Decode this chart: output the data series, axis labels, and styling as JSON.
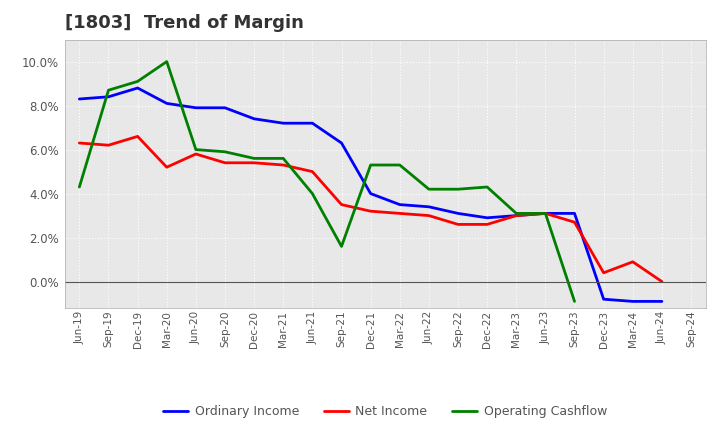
{
  "title": "[1803]  Trend of Margin",
  "x_labels": [
    "Jun-19",
    "Sep-19",
    "Dec-19",
    "Mar-20",
    "Jun-20",
    "Sep-20",
    "Dec-20",
    "Mar-21",
    "Jun-21",
    "Sep-21",
    "Dec-21",
    "Mar-22",
    "Jun-22",
    "Sep-22",
    "Dec-22",
    "Mar-23",
    "Jun-23",
    "Sep-23",
    "Dec-23",
    "Mar-24",
    "Jun-24",
    "Sep-24"
  ],
  "ordinary_income": [
    8.3,
    8.4,
    8.8,
    8.1,
    7.9,
    7.9,
    7.4,
    7.2,
    7.2,
    6.3,
    4.0,
    3.5,
    3.4,
    3.1,
    2.9,
    3.0,
    3.1,
    3.1,
    -0.8,
    -0.9,
    -0.9,
    null
  ],
  "net_income": [
    6.3,
    6.2,
    6.6,
    5.2,
    5.8,
    5.4,
    5.4,
    5.3,
    5.0,
    3.5,
    3.2,
    3.1,
    3.0,
    2.6,
    2.6,
    3.0,
    3.1,
    2.7,
    0.4,
    0.9,
    0.0,
    null
  ],
  "operating_cashflow": [
    4.3,
    8.7,
    9.1,
    10.0,
    6.0,
    5.9,
    5.6,
    5.6,
    4.0,
    1.6,
    5.3,
    5.3,
    4.2,
    4.2,
    4.3,
    3.1,
    3.1,
    -0.9,
    null,
    null,
    null,
    null
  ],
  "ordinary_income_color": "#0000ff",
  "net_income_color": "#ff0000",
  "operating_cashflow_color": "#008000",
  "ylim": [
    -1.2,
    11.0
  ],
  "yticks": [
    0.0,
    2.0,
    4.0,
    6.0,
    8.0,
    10.0
  ],
  "plot_bg_color": "#e8e8e8",
  "fig_bg_color": "#ffffff",
  "grid_color": "#ffffff",
  "title_fontsize": 13,
  "title_color": "#333333",
  "tick_color": "#555555",
  "legend_labels": [
    "Ordinary Income",
    "Net Income",
    "Operating Cashflow"
  ],
  "line_width": 2.0
}
